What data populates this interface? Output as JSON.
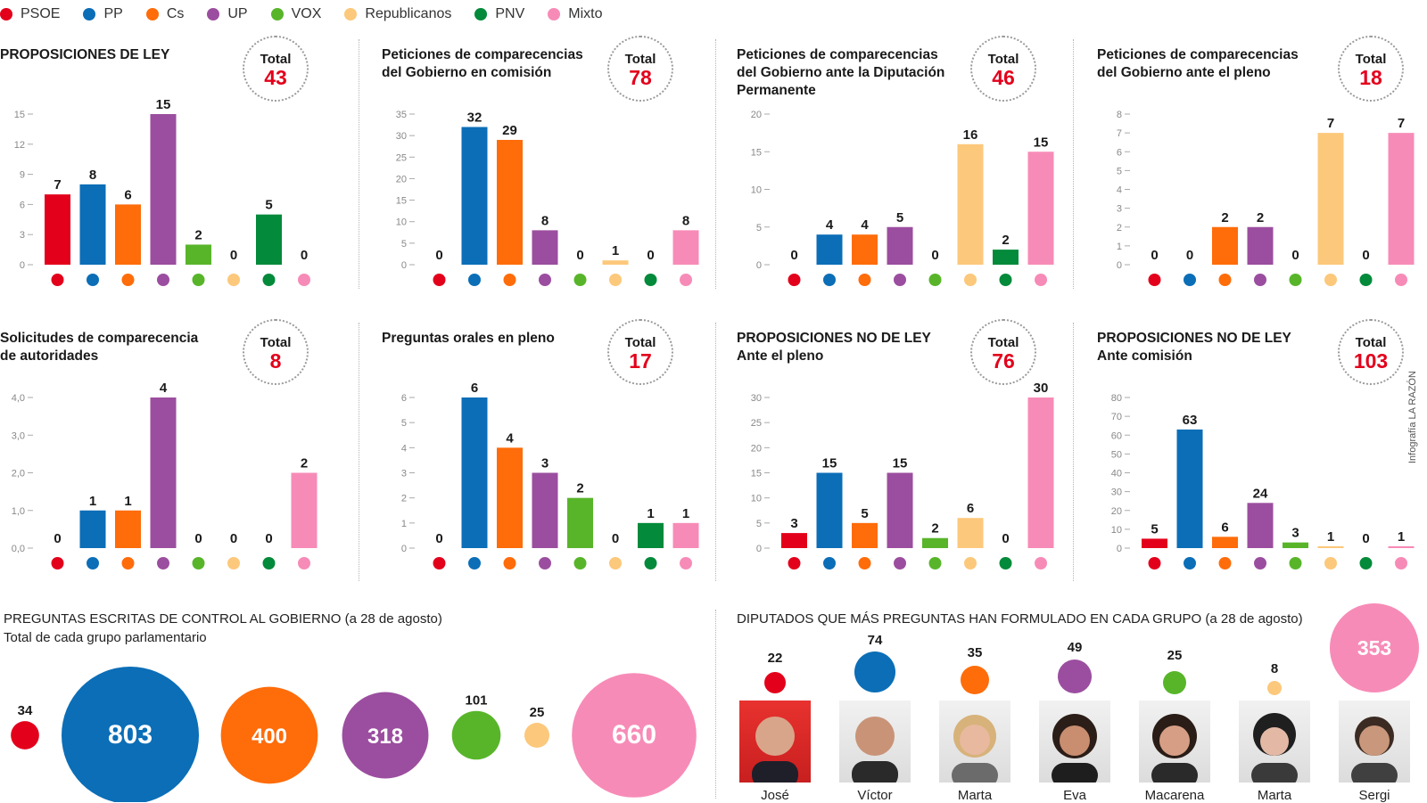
{
  "party_colors": {
    "PSOE": "#e3001b",
    "PP": "#0b6eb7",
    "Cs": "#ff6c0a",
    "UP": "#9b4e9f",
    "VOX": "#58b52a",
    "Republicanos": "#fcc87b",
    "PNV": "#038a3a",
    "Mixto": "#f78bb7"
  },
  "legend": [
    "PSOE",
    "PP",
    "Cs",
    "UP",
    "VOX",
    "Republicanos",
    "PNV",
    "Mixto"
  ],
  "chart_data": [
    {
      "type": "bar",
      "title": "PROPOSICIONES DE LEY",
      "total_label": "Total",
      "total": "43",
      "categories": [
        "PSOE",
        "PP",
        "Cs",
        "UP",
        "VOX",
        "Republicanos",
        "PNV",
        "Mixto"
      ],
      "values": [
        7,
        8,
        6,
        15,
        2,
        0,
        5,
        0
      ],
      "yticks": [
        "0",
        "3",
        "6",
        "9",
        "12",
        "15"
      ],
      "ylim": [
        0,
        15
      ]
    },
    {
      "type": "bar",
      "title": "Peticiones de comparecencias\ndel Gobierno en comisión",
      "total_label": "Total",
      "total": "78",
      "categories": [
        "PSOE",
        "PP",
        "Cs",
        "UP",
        "VOX",
        "Republicanos",
        "PNV",
        "Mixto"
      ],
      "values": [
        0,
        32,
        29,
        8,
        0,
        1,
        0,
        8
      ],
      "yticks": [
        "0",
        "5",
        "10",
        "15",
        "20",
        "25",
        "30",
        "35"
      ],
      "ylim": [
        0,
        35
      ]
    },
    {
      "type": "bar",
      "title": "Peticiones de comparecencias\ndel Gobierno ante la Diputación\nPermanente",
      "total_label": "Total",
      "total": "46",
      "categories": [
        "PSOE",
        "PP",
        "Cs",
        "UP",
        "VOX",
        "Republicanos",
        "PNV",
        "Mixto"
      ],
      "values": [
        0,
        4,
        4,
        5,
        0,
        16,
        2,
        15
      ],
      "yticks": [
        "0",
        "5",
        "10",
        "15",
        "20"
      ],
      "ylim": [
        0,
        20
      ]
    },
    {
      "type": "bar",
      "title": "Peticiones de comparecencias\ndel Gobierno ante el pleno",
      "total_label": "Total",
      "total": "18",
      "categories": [
        "PSOE",
        "PP",
        "Cs",
        "UP",
        "VOX",
        "Republicanos",
        "PNV",
        "Mixto"
      ],
      "values": [
        0,
        0,
        2,
        2,
        0,
        7,
        0,
        7
      ],
      "yticks": [
        "0",
        "1",
        "2",
        "3",
        "4",
        "5",
        "6",
        "7",
        "8"
      ],
      "ylim": [
        0,
        8
      ]
    },
    {
      "type": "bar",
      "title": "Solicitudes de comparecencia\nde autoridades",
      "total_label": "Total",
      "total": "8",
      "categories": [
        "PSOE",
        "PP",
        "Cs",
        "UP",
        "VOX",
        "Republicanos",
        "PNV",
        "Mixto"
      ],
      "values": [
        0,
        1,
        1,
        4,
        0,
        0,
        0,
        2
      ],
      "yticks": [
        "0,0",
        "1,0",
        "2,0",
        "3,0",
        "4,0"
      ],
      "ylim": [
        0,
        4
      ]
    },
    {
      "type": "bar",
      "title": "Preguntas orales en pleno",
      "total_label": "Total",
      "total": "17",
      "categories": [
        "PSOE",
        "PP",
        "Cs",
        "UP",
        "VOX",
        "Republicanos",
        "PNV",
        "Mixto"
      ],
      "values": [
        0,
        6,
        4,
        3,
        2,
        0,
        1,
        1
      ],
      "yticks": [
        "0",
        "1",
        "2",
        "3",
        "4",
        "5",
        "6"
      ],
      "ylim": [
        0,
        6
      ]
    },
    {
      "type": "bar",
      "title": "PROPOSICIONES NO DE LEY\nAnte el pleno",
      "total_label": "Total",
      "total": "76",
      "categories": [
        "PSOE",
        "PP",
        "Cs",
        "UP",
        "VOX",
        "Republicanos",
        "PNV",
        "Mixto"
      ],
      "values": [
        3,
        15,
        5,
        15,
        2,
        6,
        0,
        30
      ],
      "yticks": [
        "0",
        "5",
        "10",
        "15",
        "20",
        "25",
        "30"
      ],
      "ylim": [
        0,
        30
      ]
    },
    {
      "type": "bar",
      "title": "PROPOSICIONES NO DE LEY\nAnte comisión",
      "total_label": "Total",
      "total": "103",
      "categories": [
        "PSOE",
        "PP",
        "Cs",
        "UP",
        "VOX",
        "Republicanos",
        "PNV",
        "Mixto"
      ],
      "values": [
        5,
        63,
        6,
        24,
        3,
        1,
        0,
        1
      ],
      "yticks": [
        "0",
        "10",
        "20",
        "30",
        "40",
        "50",
        "60",
        "70",
        "80"
      ],
      "ylim": [
        0,
        80
      ]
    },
    {
      "type": "bubble",
      "title": "PREGUNTAS ESCRITAS DE CONTROL AL GOBIERNO",
      "title_note": "(a 28 de agosto)",
      "subtitle": "Total de cada grupo parlamentario",
      "categories": [
        "PSOE",
        "PP",
        "Cs",
        "UP",
        "VOX",
        "Republicanos",
        "Mixto"
      ],
      "values": [
        34,
        803,
        400,
        318,
        101,
        25,
        660
      ]
    }
  ],
  "deputies_section": {
    "title": "DIPUTADOS QUE MÁS PREGUNTAS HAN FORMULADO EN CADA GRUPO",
    "title_note": "(a 28 de agosto)",
    "deputies": [
      {
        "name": "José",
        "party": "PSOE",
        "questions": "22"
      },
      {
        "name": "Víctor",
        "party": "PP",
        "questions": "74"
      },
      {
        "name": "Marta",
        "party": "Cs",
        "questions": "35"
      },
      {
        "name": "Eva",
        "party": "UP",
        "questions": "49"
      },
      {
        "name": "Macarena",
        "party": "VOX",
        "questions": "25"
      },
      {
        "name": "Marta",
        "party": "Republicanos",
        "questions": "8"
      },
      {
        "name": "Sergi",
        "party": "Mixto",
        "questions": "353"
      }
    ]
  },
  "credit": "Infografía LA RAZÓN"
}
